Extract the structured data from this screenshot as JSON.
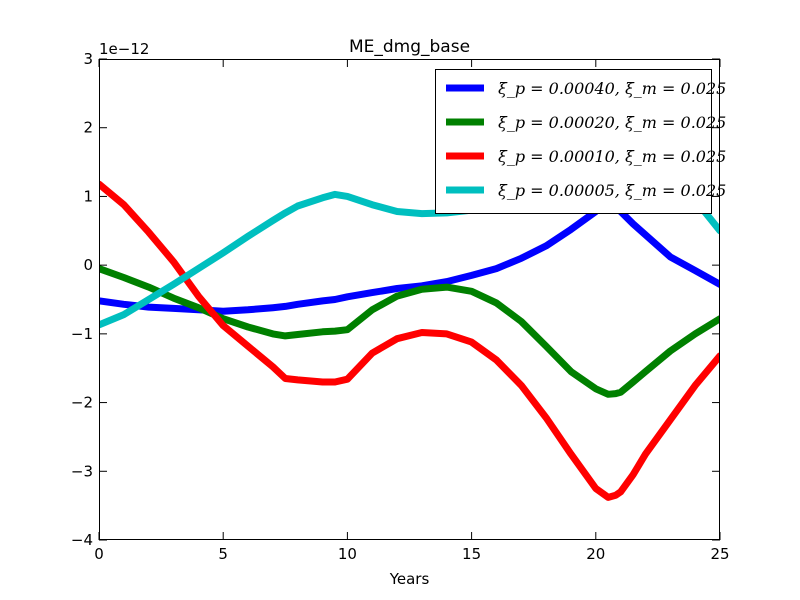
{
  "chart_data": {
    "type": "line",
    "title": "ME_dmg_base",
    "xlabel": "Years",
    "ylabel": "",
    "y_offset_text": "1e−12",
    "xlim": [
      0,
      25
    ],
    "ylim": [
      -4,
      3
    ],
    "xticks": [
      "0",
      "5",
      "10",
      "15",
      "20",
      "25"
    ],
    "yticks": [
      "−4",
      "−3",
      "−2",
      "−1",
      "0",
      "1",
      "2",
      "3"
    ],
    "grid": false,
    "legend_position": "top-right",
    "x": [
      0,
      1,
      2,
      3,
      4,
      5,
      6,
      7,
      7.5,
      8,
      9,
      9.5,
      10,
      11,
      12,
      13,
      14,
      15,
      16,
      17,
      18,
      19,
      20,
      20.5,
      20.8,
      21,
      21.5,
      22,
      23,
      24,
      25
    ],
    "series": [
      {
        "name": "ξ_p = 0.00040, ξ_m = 0.025",
        "color": "#0000ff",
        "values": [
          -0.52,
          -0.57,
          -0.61,
          -0.63,
          -0.65,
          -0.67,
          -0.65,
          -0.62,
          -0.6,
          -0.57,
          -0.52,
          -0.5,
          -0.46,
          -0.4,
          -0.34,
          -0.3,
          -0.24,
          -0.15,
          -0.05,
          0.1,
          0.28,
          0.52,
          0.78,
          0.9,
          0.85,
          0.78,
          0.6,
          0.44,
          0.12,
          -0.08,
          -0.28
        ]
      },
      {
        "name": "ξ_p = 0.00020, ξ_m = 0.025",
        "color": "#008000",
        "values": [
          -0.05,
          -0.18,
          -0.32,
          -0.48,
          -0.62,
          -0.78,
          -0.9,
          -1.0,
          -1.03,
          -1.01,
          -0.97,
          -0.96,
          -0.94,
          -0.65,
          -0.45,
          -0.35,
          -0.32,
          -0.38,
          -0.55,
          -0.82,
          -1.18,
          -1.55,
          -1.8,
          -1.88,
          -1.87,
          -1.85,
          -1.7,
          -1.55,
          -1.25,
          -1.0,
          -0.78
        ]
      },
      {
        "name": "ξ_p = 0.00010, ξ_m = 0.025",
        "color": "#ff0000",
        "values": [
          1.18,
          0.88,
          0.48,
          0.05,
          -0.45,
          -0.88,
          -1.18,
          -1.48,
          -1.65,
          -1.67,
          -1.7,
          -1.7,
          -1.66,
          -1.28,
          -1.07,
          -0.98,
          -1.0,
          -1.12,
          -1.38,
          -1.75,
          -2.22,
          -2.75,
          -3.25,
          -3.38,
          -3.35,
          -3.3,
          -3.05,
          -2.75,
          -2.25,
          -1.75,
          -1.32
        ]
      },
      {
        "name": "ξ_p = 0.00005, ξ_m = 0.025",
        "color": "#00bfbf",
        "values": [
          -0.87,
          -0.72,
          -0.5,
          -0.28,
          -0.05,
          0.18,
          0.42,
          0.65,
          0.76,
          0.86,
          0.98,
          1.03,
          1.0,
          0.88,
          0.78,
          0.75,
          0.76,
          0.8,
          0.85,
          0.9,
          0.95,
          0.98,
          1.0,
          1.02,
          1.02,
          1.02,
          1.0,
          1.0,
          0.98,
          0.95,
          0.5
        ]
      }
    ]
  }
}
